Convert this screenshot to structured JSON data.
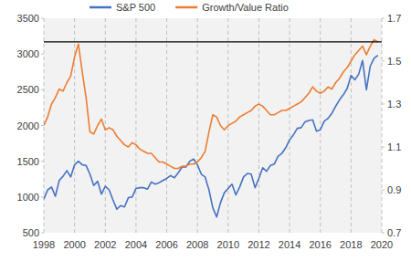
{
  "chart_data": {
    "type": "line",
    "x": [
      1998,
      1998.25,
      1998.5,
      1998.75,
      1999,
      1999.25,
      1999.5,
      1999.75,
      2000,
      2000.25,
      2000.5,
      2000.75,
      2001,
      2001.25,
      2001.5,
      2001.75,
      2002,
      2002.25,
      2002.5,
      2002.75,
      2003,
      2003.25,
      2003.5,
      2003.75,
      2004,
      2004.25,
      2004.5,
      2004.75,
      2005,
      2005.25,
      2005.5,
      2005.75,
      2006,
      2006.25,
      2006.5,
      2006.75,
      2007,
      2007.25,
      2007.5,
      2007.75,
      2008,
      2008.25,
      2008.5,
      2008.75,
      2009,
      2009.25,
      2009.5,
      2009.75,
      2010,
      2010.25,
      2010.5,
      2010.75,
      2011,
      2011.25,
      2011.5,
      2011.75,
      2012,
      2012.25,
      2012.5,
      2012.75,
      2013,
      2013.25,
      2013.5,
      2013.75,
      2014,
      2014.25,
      2014.5,
      2014.75,
      2015,
      2015.25,
      2015.5,
      2015.75,
      2016,
      2016.25,
      2016.5,
      2016.75,
      2017,
      2017.25,
      2017.5,
      2017.75,
      2018,
      2018.25,
      2018.5,
      2018.75,
      2019,
      2019.25,
      2019.5,
      2019.75
    ],
    "series": [
      {
        "name": "S&P 500",
        "color": "#4472c4",
        "values": [
          970,
          1100,
          1140,
          1010,
          1230,
          1290,
          1370,
          1280,
          1450,
          1500,
          1450,
          1440,
          1320,
          1160,
          1220,
          1040,
          1150,
          1100,
          960,
          830,
          880,
          860,
          990,
          1000,
          1120,
          1130,
          1130,
          1110,
          1210,
          1180,
          1200,
          1230,
          1260,
          1300,
          1270,
          1340,
          1420,
          1420,
          1500,
          1530,
          1450,
          1320,
          1280,
          1100,
          850,
          720,
          920,
          1060,
          1120,
          1180,
          1030,
          1140,
          1280,
          1330,
          1320,
          1130,
          1260,
          1410,
          1360,
          1440,
          1460,
          1570,
          1610,
          1690,
          1800,
          1870,
          1960,
          1970,
          2050,
          2070,
          2080,
          1920,
          1940,
          2060,
          2100,
          2170,
          2270,
          2360,
          2430,
          2520,
          2700,
          2640,
          2720,
          2910,
          2500,
          2830,
          2940,
          2980
        ]
      },
      {
        "name": "Growth/Value Ratio",
        "color": "#ed7d31",
        "axis": "y2",
        "values": [
          1.2,
          1.24,
          1.3,
          1.33,
          1.37,
          1.36,
          1.4,
          1.43,
          1.52,
          1.58,
          1.45,
          1.33,
          1.17,
          1.16,
          1.2,
          1.23,
          1.18,
          1.19,
          1.18,
          1.15,
          1.13,
          1.11,
          1.1,
          1.12,
          1.11,
          1.09,
          1.08,
          1.07,
          1.07,
          1.05,
          1.03,
          1.03,
          1.02,
          1.01,
          1,
          1,
          1.01,
          1.01,
          1.02,
          1.02,
          1.03,
          1.05,
          1.08,
          1.17,
          1.25,
          1.24,
          1.2,
          1.18,
          1.2,
          1.21,
          1.22,
          1.24,
          1.25,
          1.26,
          1.27,
          1.29,
          1.3,
          1.29,
          1.27,
          1.25,
          1.25,
          1.26,
          1.27,
          1.27,
          1.28,
          1.29,
          1.3,
          1.31,
          1.33,
          1.35,
          1.38,
          1.36,
          1.35,
          1.36,
          1.38,
          1.37,
          1.4,
          1.42,
          1.45,
          1.47,
          1.5,
          1.53,
          1.55,
          1.57,
          1.53,
          1.57,
          1.6,
          1.59
        ]
      },
      {
        "color": "#000000",
        "axis": "y2",
        "x": [
          1998,
          2020
        ],
        "values": [
          1.59,
          1.59
        ]
      }
    ],
    "xlim": [
      1998,
      2020
    ],
    "xticks": [
      1998,
      2000,
      2002,
      2004,
      2006,
      2008,
      2010,
      2012,
      2014,
      2016,
      2018,
      2020
    ],
    "ylim": [
      500,
      3500
    ],
    "yticks": [
      500,
      1000,
      1500,
      2000,
      2500,
      3000,
      3500
    ],
    "y2lim": [
      0.7,
      1.7
    ],
    "y2ticks": [
      0.7,
      0.9,
      1.1,
      1.3,
      1.5,
      1.7
    ],
    "grid": "x",
    "legend": "top"
  }
}
